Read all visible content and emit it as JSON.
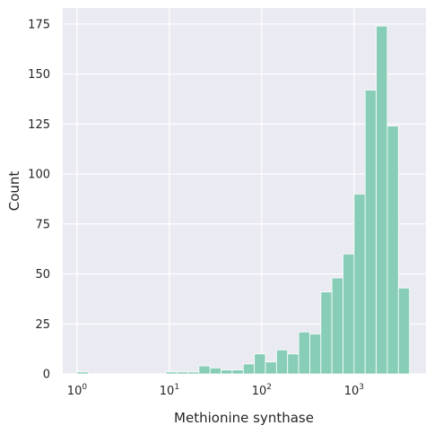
{
  "chart_data": {
    "type": "bar",
    "subtype": "histogram",
    "xscale": "log",
    "xlabel": "Methionine synthase",
    "ylabel": "Count",
    "xlim": [
      0.7,
      6000
    ],
    "ylim": [
      0,
      183
    ],
    "grid": true,
    "background_color": "#EAEAF2",
    "bar_color": "#88CDB7",
    "x_ticks": [
      {
        "value": 1,
        "base": "10",
        "exp": "0"
      },
      {
        "value": 10,
        "base": "10",
        "exp": "1"
      },
      {
        "value": 100,
        "base": "10",
        "exp": "2"
      },
      {
        "value": 1000,
        "base": "10",
        "exp": "3"
      }
    ],
    "y_ticks": [
      0,
      25,
      50,
      75,
      100,
      125,
      150,
      175
    ],
    "bins": [
      {
        "x0": 1.0,
        "x1": 1.318,
        "count": 1
      },
      {
        "x0": 1.318,
        "x1": 1.738,
        "count": 0
      },
      {
        "x0": 1.738,
        "x1": 2.291,
        "count": 0
      },
      {
        "x0": 2.291,
        "x1": 3.02,
        "count": 0
      },
      {
        "x0": 3.02,
        "x1": 3.981,
        "count": 0
      },
      {
        "x0": 3.981,
        "x1": 5.248,
        "count": 0
      },
      {
        "x0": 5.248,
        "x1": 6.918,
        "count": 0
      },
      {
        "x0": 6.918,
        "x1": 9.12,
        "count": 0
      },
      {
        "x0": 9.12,
        "x1": 12.02,
        "count": 1
      },
      {
        "x0": 12.02,
        "x1": 15.85,
        "count": 1
      },
      {
        "x0": 15.85,
        "x1": 20.89,
        "count": 1
      },
      {
        "x0": 20.89,
        "x1": 27.54,
        "count": 4
      },
      {
        "x0": 27.54,
        "x1": 36.31,
        "count": 3
      },
      {
        "x0": 36.31,
        "x1": 47.86,
        "count": 2
      },
      {
        "x0": 47.86,
        "x1": 63.1,
        "count": 2
      },
      {
        "x0": 63.1,
        "x1": 83.18,
        "count": 5
      },
      {
        "x0": 83.18,
        "x1": 109.6,
        "count": 10
      },
      {
        "x0": 109.6,
        "x1": 144.5,
        "count": 6
      },
      {
        "x0": 144.5,
        "x1": 190.5,
        "count": 12
      },
      {
        "x0": 190.5,
        "x1": 251.2,
        "count": 10
      },
      {
        "x0": 251.2,
        "x1": 331.1,
        "count": 21
      },
      {
        "x0": 331.1,
        "x1": 436.5,
        "count": 20
      },
      {
        "x0": 436.5,
        "x1": 575.4,
        "count": 41
      },
      {
        "x0": 575.4,
        "x1": 758.6,
        "count": 48
      },
      {
        "x0": 758.6,
        "x1": 1000.0,
        "count": 60
      },
      {
        "x0": 1000.0,
        "x1": 1318.3,
        "count": 90
      },
      {
        "x0": 1318.3,
        "x1": 1737.8,
        "count": 142
      },
      {
        "x0": 1737.8,
        "x1": 2290.9,
        "count": 174
      },
      {
        "x0": 2290.9,
        "x1": 3019.9,
        "count": 124
      },
      {
        "x0": 3019.9,
        "x1": 3981.1,
        "count": 43
      }
    ]
  }
}
